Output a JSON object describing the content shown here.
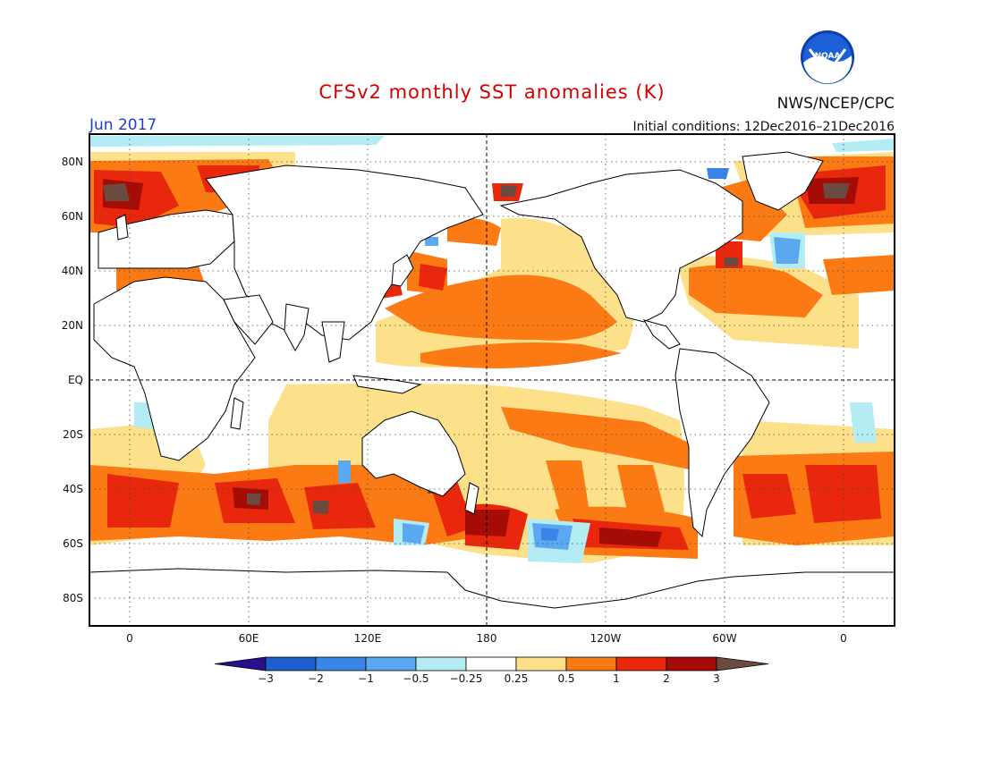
{
  "header": {
    "title": "CFSv2 monthly SST anomalies (K)",
    "valid_month": "Jun 2017",
    "initial_conditions": "Initial conditions: 12Dec2016–21Dec2016",
    "agency": "NWS/NCEP/CPC",
    "logo_text": "NOAA"
  },
  "map": {
    "lat_labels": [
      "80N",
      "60N",
      "40N",
      "20N",
      "EQ",
      "20S",
      "40S",
      "60S",
      "80S"
    ],
    "lon_labels": [
      "0",
      "60E",
      "120E",
      "180",
      "120W",
      "60W",
      "0"
    ]
  },
  "colorbar": {
    "labels": [
      "−3",
      "−2",
      "−1",
      "−0.5",
      "−0.25",
      "0.25",
      "0.5",
      "1",
      "2",
      "3"
    ],
    "colors": [
      "#2a0f8c",
      "#1e5fd0",
      "#3a86e8",
      "#5aa8f0",
      "#b4ecf4",
      "#ffffff",
      "#fde08a",
      "#fb7a14",
      "#e8270c",
      "#a60c06",
      "#6b4a40"
    ]
  },
  "colors": {
    "title": "#d40000",
    "month": "#1a3cd8",
    "text": "#111111"
  }
}
